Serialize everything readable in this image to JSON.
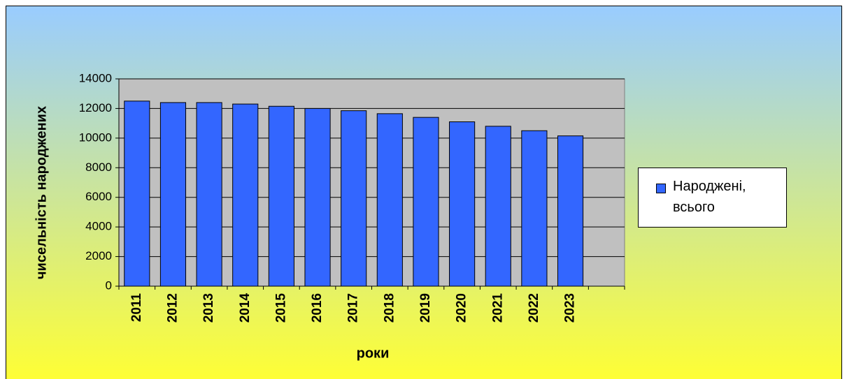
{
  "chart_data": {
    "type": "bar",
    "y_label": "чисельність народжених",
    "x_label": "роки",
    "categories": [
      "2011",
      "2012",
      "2013",
      "2014",
      "2015",
      "2016",
      "2017",
      "2018",
      "2019",
      "2020",
      "2021",
      "2022",
      "2023",
      null
    ],
    "series": [
      {
        "name": "Народжені, всього",
        "color": "#3366ff",
        "values": [
          12500,
          12400,
          12400,
          12300,
          12150,
          12000,
          11850,
          11650,
          11400,
          11100,
          10800,
          10500,
          10150,
          null
        ]
      }
    ],
    "ylim": [
      0,
      14000
    ],
    "yticks": [
      0,
      2000,
      4000,
      6000,
      8000,
      10000,
      12000,
      14000
    ],
    "grid": true,
    "legend": "right"
  }
}
